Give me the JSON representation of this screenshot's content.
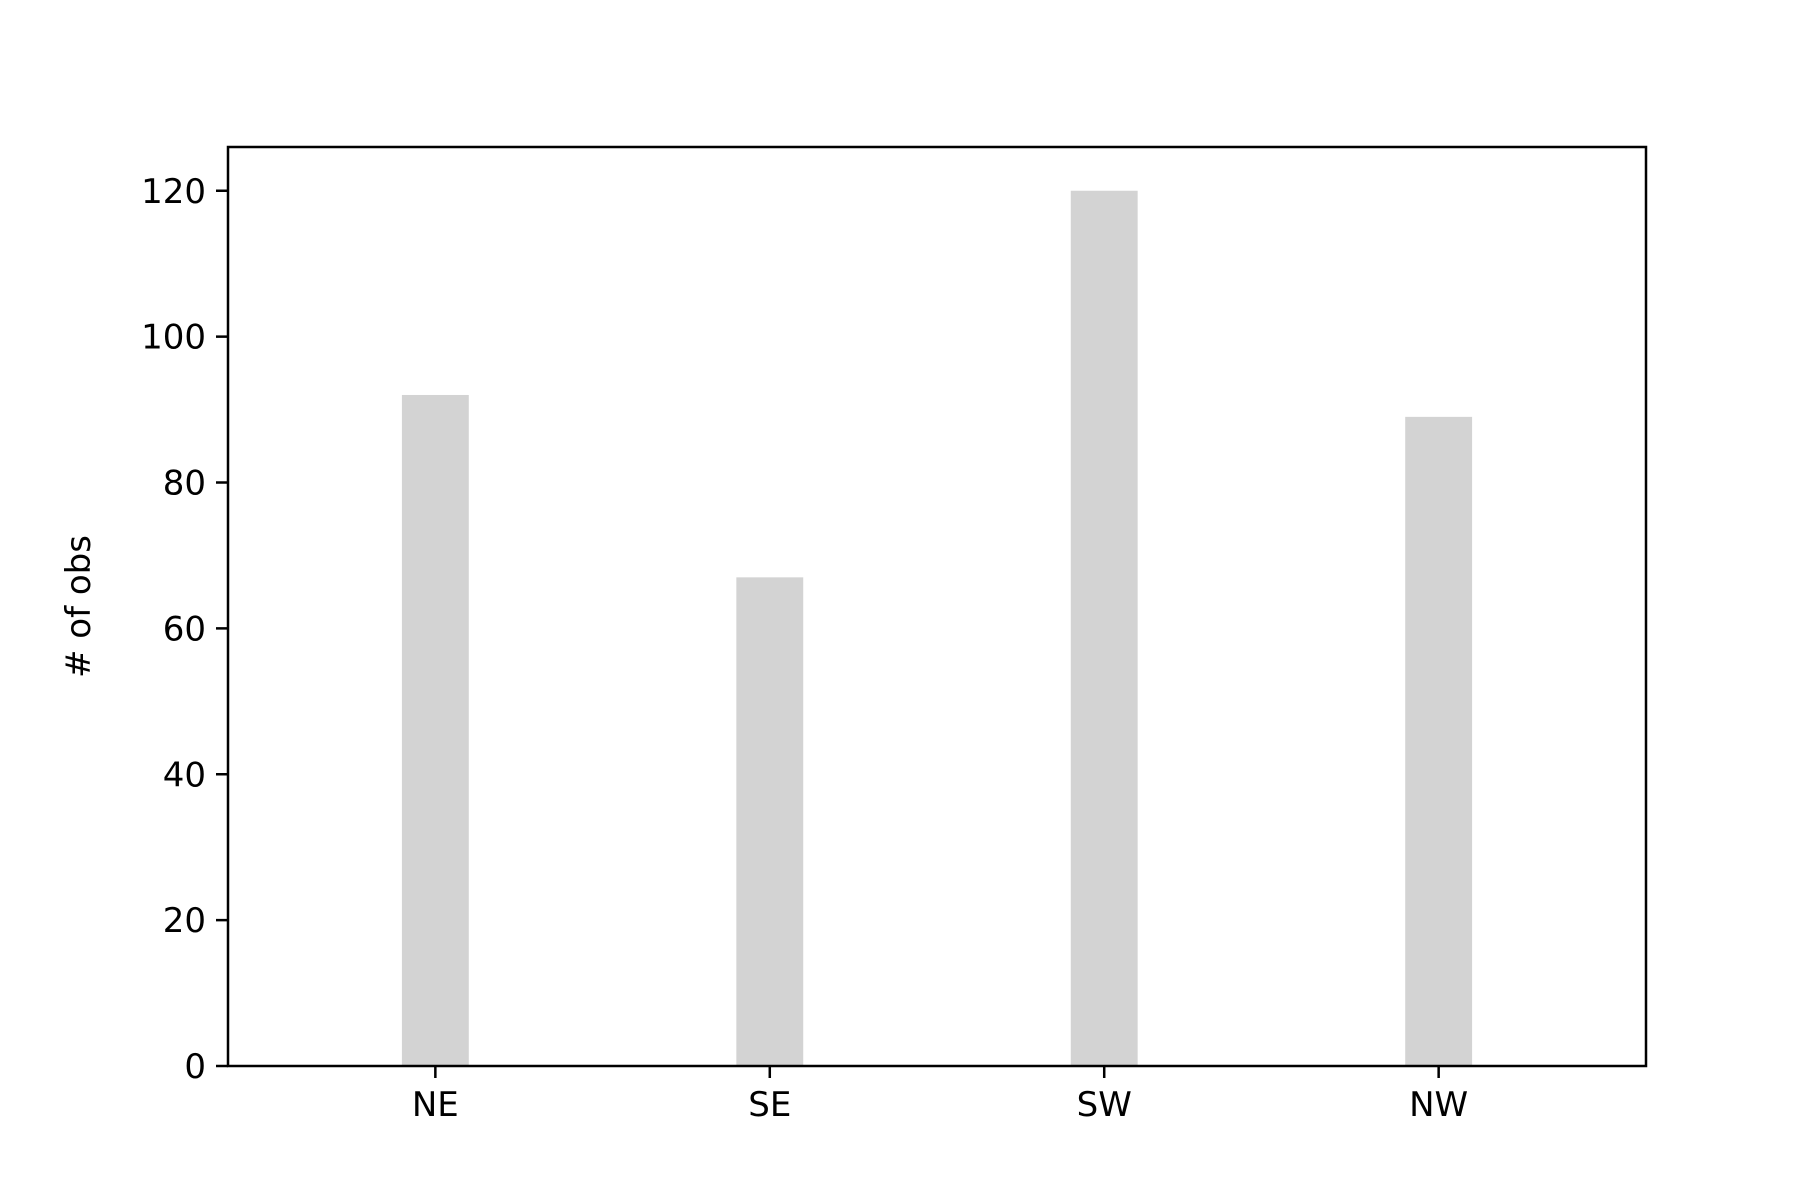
{
  "chart_data": {
    "type": "bar",
    "title": "",
    "xlabel": "",
    "ylabel": "# of obs",
    "categories": [
      "NE",
      "SE",
      "SW",
      "NW"
    ],
    "values": [
      92,
      67,
      120,
      89
    ],
    "ylim": [
      0,
      126
    ],
    "yticks": [
      0,
      20,
      40,
      60,
      80,
      100,
      120
    ],
    "grid": false,
    "legend": "none",
    "bar_color": "#d3d3d3",
    "axis_color": "#000000"
  }
}
